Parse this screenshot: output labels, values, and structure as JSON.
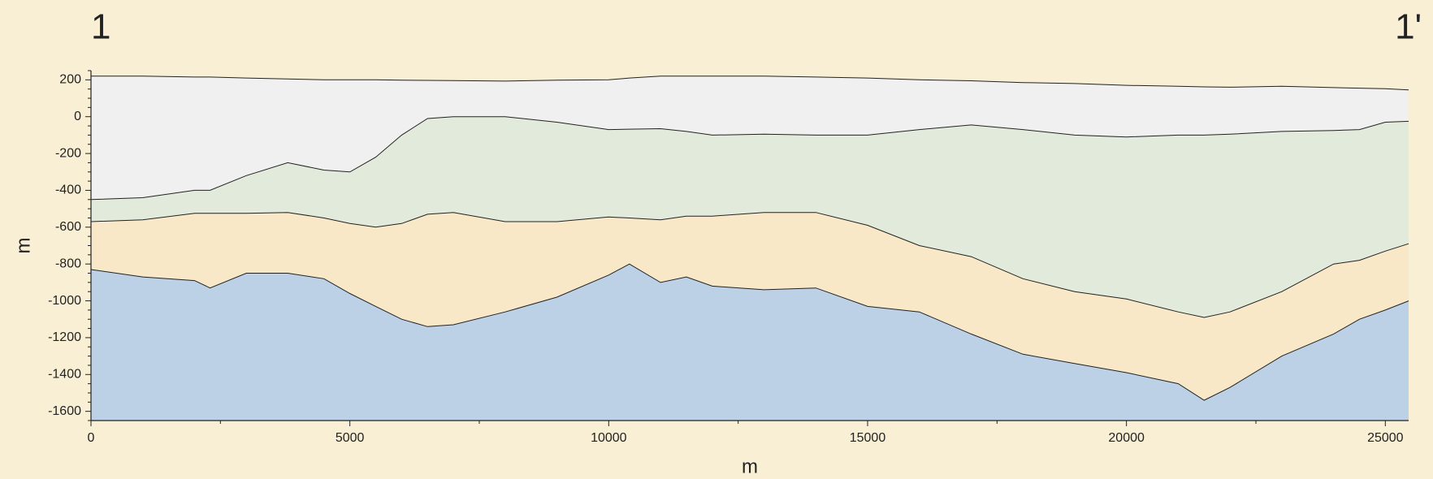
{
  "chart_data": {
    "type": "area",
    "annotations": [
      "1",
      "1'"
    ],
    "xlabel": "m",
    "ylabel": "m",
    "x": [
      0,
      1000,
      2000,
      2300,
      3000,
      3800,
      4500,
      5000,
      5500,
      6000,
      6500,
      7000,
      8000,
      9000,
      10000,
      10400,
      11000,
      11500,
      12000,
      13000,
      14000,
      15000,
      16000,
      17000,
      18000,
      19000,
      20000,
      21000,
      21500,
      22000,
      23000,
      24000,
      24500,
      25000,
      25450
    ],
    "series": [
      {
        "color": "#f0f0f0",
        "values": [
          220,
          220,
          215,
          215,
          210,
          205,
          200,
          200,
          200,
          198,
          197,
          196,
          193,
          198,
          200,
          210,
          220,
          220,
          220,
          220,
          215,
          210,
          200,
          195,
          185,
          180,
          170,
          165,
          162,
          160,
          165,
          158,
          155,
          152,
          145
        ]
      },
      {
        "color": "#e2ebdb",
        "values": [
          -450,
          -440,
          -400,
          -400,
          -320,
          -250,
          -290,
          -300,
          -220,
          -100,
          -10,
          0,
          0,
          -30,
          -70,
          -68,
          -65,
          -80,
          -100,
          -95,
          -100,
          -100,
          -70,
          -45,
          -70,
          -100,
          -110,
          -100,
          -100,
          -95,
          -80,
          -75,
          -70,
          -30,
          -25
        ]
      },
      {
        "color": "#f8e8c8",
        "values": [
          -570,
          -560,
          -525,
          -525,
          -525,
          -520,
          -550,
          -580,
          -600,
          -580,
          -530,
          -520,
          -570,
          -570,
          -545,
          -550,
          -560,
          -540,
          -540,
          -520,
          -520,
          -590,
          -700,
          -760,
          -880,
          -950,
          -990,
          -1060,
          -1090,
          -1060,
          -950,
          -800,
          -780,
          -730,
          -690
        ]
      },
      {
        "color": "#bdd1e6",
        "values": [
          -830,
          -870,
          -890,
          -930,
          -850,
          -850,
          -880,
          -960,
          -1030,
          -1100,
          -1140,
          -1130,
          -1060,
          -980,
          -860,
          -800,
          -900,
          -870,
          -920,
          -940,
          -930,
          -1030,
          -1060,
          -1180,
          -1290,
          -1340,
          -1390,
          -1450,
          -1540,
          -1470,
          -1300,
          -1180,
          -1100,
          -1050,
          -1000
        ]
      }
    ],
    "xlim": [
      0,
      25450
    ],
    "ylim": [
      -1650,
      250
    ],
    "xticks": [
      0,
      5000,
      10000,
      15000,
      20000,
      25000
    ],
    "xminorticks": [
      2500,
      7500,
      12500,
      17500,
      22500
    ],
    "yticks": [
      -1600,
      -1400,
      -1200,
      -1000,
      -800,
      -600,
      -400,
      -200,
      0,
      200
    ],
    "yminorticks": [
      -1650,
      -1550,
      -1500,
      -1450,
      -1350,
      -1300,
      -1250,
      -1150,
      -1100,
      -1050,
      -950,
      -900,
      -850,
      -750,
      -700,
      -650,
      -550,
      -500,
      -450,
      -350,
      -300,
      -250,
      -150,
      -100,
      -50,
      50,
      100,
      150,
      250
    ],
    "background": "#f8efd4"
  }
}
